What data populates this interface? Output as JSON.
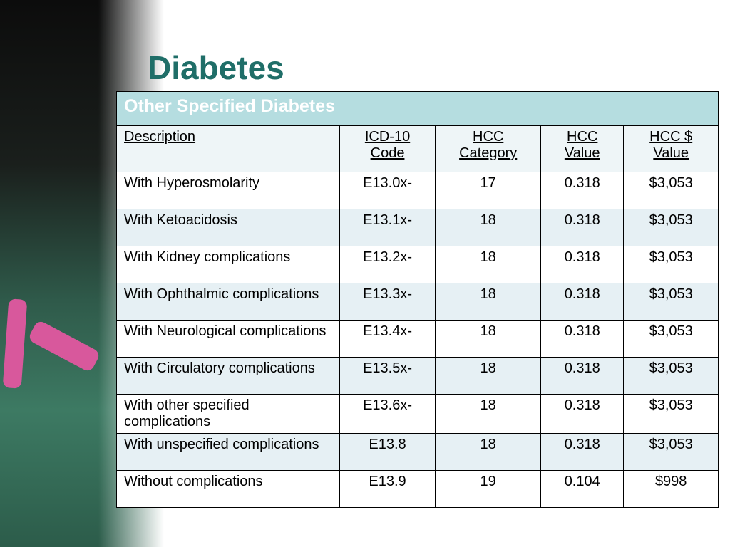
{
  "title": "Diabetes",
  "table": {
    "caption": "Other Specified Diabetes",
    "header": [
      "Description",
      "ICD-10 Code",
      "HCC Category",
      "HCC Value",
      "HCC $ Value"
    ],
    "rows": [
      [
        "With Hyperosmolarity",
        "E13.0x-",
        "17",
        "0.318",
        "$3,053"
      ],
      [
        "With Ketoacidosis",
        "E13.1x-",
        "18",
        "0.318",
        "$3,053"
      ],
      [
        "With Kidney complications",
        "E13.2x-",
        "18",
        "0.318",
        "$3,053"
      ],
      [
        "With Ophthalmic complications",
        "E13.3x-",
        "18",
        "0.318",
        "$3,053"
      ],
      [
        "With Neurological complications",
        "E13.4x-",
        "18",
        "0.318",
        "$3,053"
      ],
      [
        "With Circulatory complications",
        "E13.5x-",
        "18",
        "0.318",
        "$3,053"
      ],
      [
        "With other specified complications",
        "E13.6x-",
        "18",
        "0.318",
        "$3,053"
      ],
      [
        "With unspecified  complications",
        "E13.8",
        "18",
        "0.318",
        "$3,053"
      ],
      [
        "Without complications",
        "E13.9",
        "19",
        "0.104",
        "$998"
      ]
    ]
  }
}
